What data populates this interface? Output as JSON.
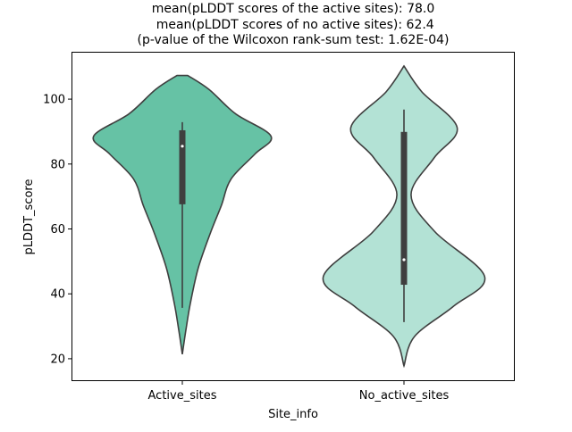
{
  "chart_data": {
    "type": "violin",
    "title_lines": [
      "mean(pLDDT scores of the active sites): 78.0",
      " mean(pLDDT scores of no active sites): 62.4",
      "(p-value of the Wilcoxon rank-sum test: 1.62E-04)"
    ],
    "xlabel": "Site_info",
    "ylabel": "pLDDT_score",
    "categories": [
      "Active_sites",
      "No_active_sites"
    ],
    "ylim": [
      13.1,
      114.6
    ],
    "xlim": [
      -0.5,
      1.5
    ],
    "yticks": [
      20,
      40,
      60,
      80,
      100
    ],
    "ytick_labels": [
      "20",
      "40",
      "60",
      "80",
      "100"
    ],
    "grid": false,
    "colors": {
      "Active_sites": "#66c2a5",
      "No_active_sites": "#b3e2d5",
      "outline": "#3f3f3f"
    },
    "series": [
      {
        "name": "Active_sites",
        "density_profile": [
          [
            107.3,
            0.06
          ],
          [
            103,
            0.3
          ],
          [
            95.5,
            0.6
          ],
          [
            88.6,
            1.0
          ],
          [
            83.1,
            0.82
          ],
          [
            75.4,
            0.55
          ],
          [
            67.2,
            0.44
          ],
          [
            59,
            0.32
          ],
          [
            48,
            0.18
          ],
          [
            37,
            0.09
          ],
          [
            28.8,
            0.04
          ],
          [
            21.4,
            0.0
          ]
        ],
        "box": {
          "whisker_low": 35.7,
          "q1": 67.6,
          "median": 85.5,
          "q3": 90.4,
          "whisker_high": 92.9
        }
      },
      {
        "name": "No_active_sites",
        "density_profile": [
          [
            110.2,
            0.0
          ],
          [
            102.3,
            0.2
          ],
          [
            91.2,
            0.6
          ],
          [
            81.9,
            0.34
          ],
          [
            70.5,
            0.08
          ],
          [
            59.1,
            0.35
          ],
          [
            45.3,
            0.91
          ],
          [
            36.2,
            0.56
          ],
          [
            26.9,
            0.12
          ],
          [
            17.8,
            0.0
          ]
        ],
        "box": {
          "whisker_low": 31.3,
          "q1": 42.8,
          "median": 50.5,
          "q3": 89.9,
          "whisker_high": 96.8
        }
      }
    ]
  }
}
